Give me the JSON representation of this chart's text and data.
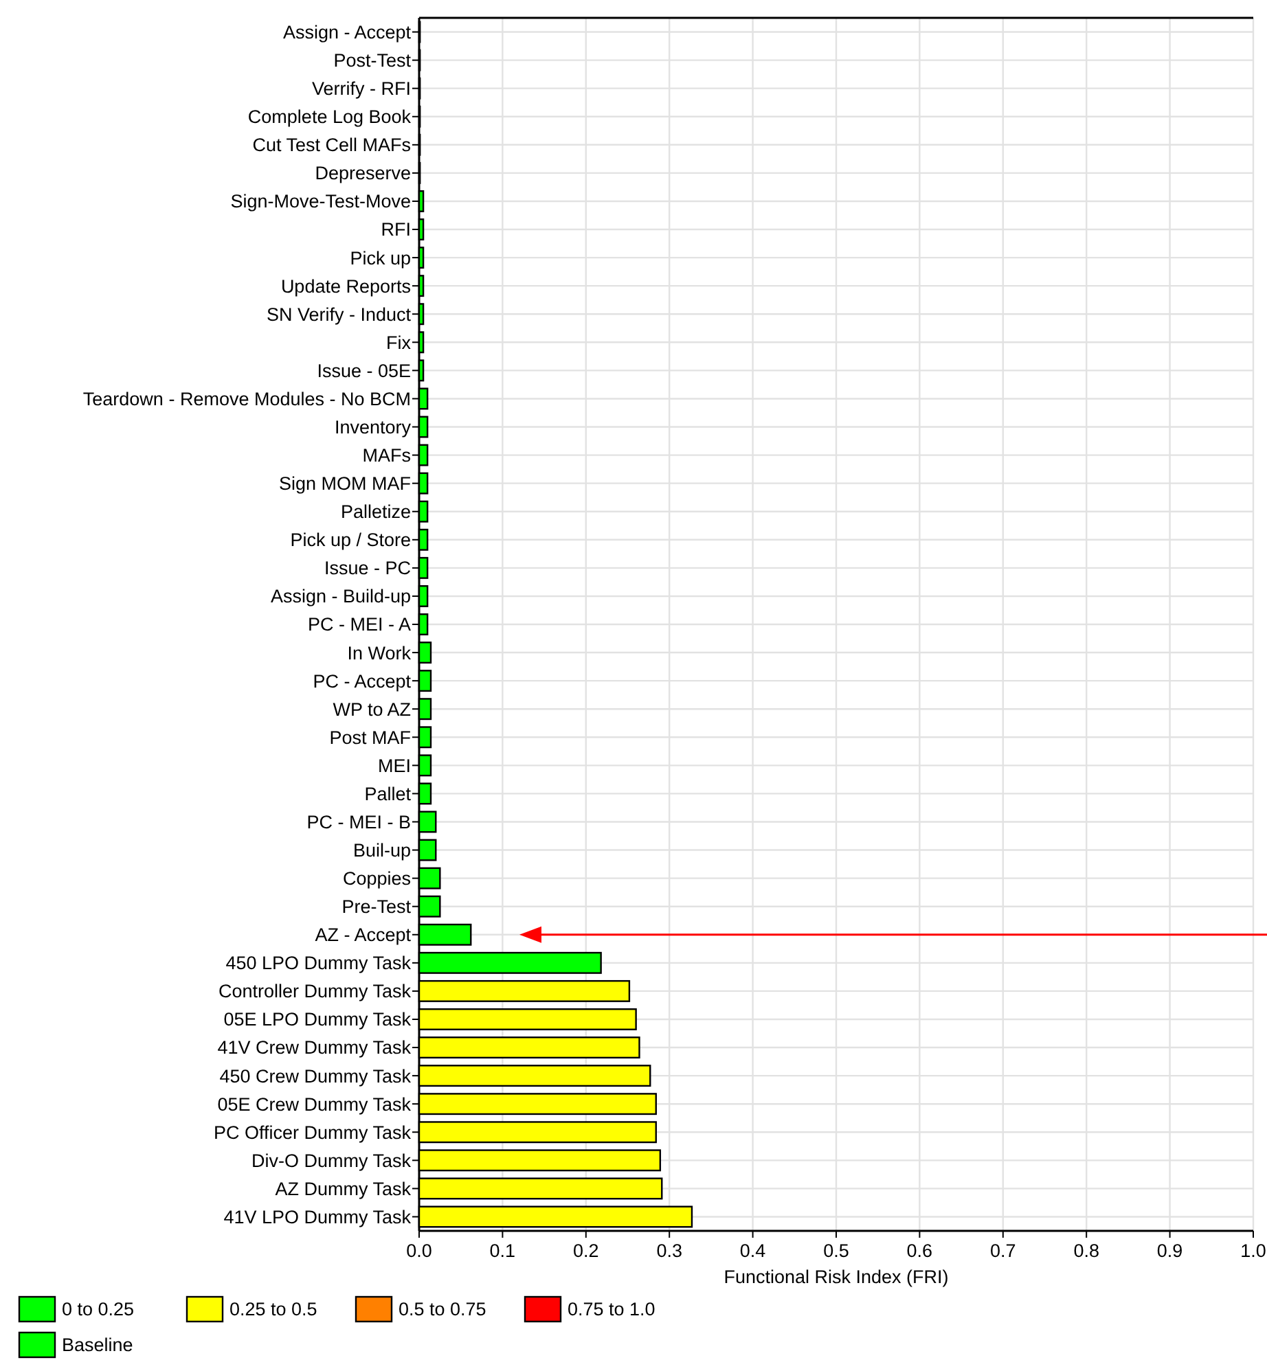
{
  "chart_data": {
    "type": "bar",
    "orientation": "horizontal",
    "stacked": true,
    "xlabel": "Functional Risk Index (FRI)",
    "categories": [
      "Assign - Accept",
      "Post-Test",
      "Verrify - RFI",
      "Complete Log Book",
      "Cut Test Cell MAFs",
      "Depreserve",
      "Sign-Move-Test-Move",
      "RFI",
      "Pick up",
      "Update Reports",
      "SN Verify - Induct",
      "Fix",
      "Issue - 05E",
      "Teardown - Remove Modules - No BCM",
      "Inventory",
      "MAFs",
      "Sign MOM MAF",
      "Palletize",
      "Pick up / Store",
      "Issue - PC",
      "Assign - Build-up",
      "PC - MEI - A",
      "In Work",
      "PC - Accept",
      "WP to AZ",
      "Post MAF",
      "MEI",
      "Pallet",
      "PC - MEI - B",
      "Buil-up",
      "Coppies",
      "Pre-Test",
      "AZ - Accept",
      "450 LPO Dummy Task",
      "Controller Dummy Task",
      "05E LPO Dummy Task",
      "41V Crew Dummy Task",
      "450 Crew Dummy Task",
      "05E Crew Dummy Task",
      "PC Officer Dummy Task",
      "Div-O Dummy Task",
      "AZ Dummy Task",
      "41V LPO Dummy Task"
    ],
    "series": [
      {
        "name": "0 to 0.25",
        "color": "#00ff00",
        "values": [
          0.001,
          0.001,
          0.001,
          0.001,
          0.001,
          0.001,
          0.005,
          0.005,
          0.005,
          0.005,
          0.005,
          0.005,
          0.005,
          0.01,
          0.01,
          0.01,
          0.01,
          0.01,
          0.01,
          0.01,
          0.01,
          0.01,
          0.014,
          0.014,
          0.014,
          0.014,
          0.014,
          0.014,
          0.02,
          0.02,
          0.025,
          0.025,
          null,
          0.218,
          null,
          null,
          null,
          null,
          null,
          null,
          null,
          null,
          null
        ]
      },
      {
        "name": "0.25 to 0.5",
        "color": "#ffff00",
        "values": [
          null,
          null,
          null,
          null,
          null,
          null,
          null,
          null,
          null,
          null,
          null,
          null,
          null,
          null,
          null,
          null,
          null,
          null,
          null,
          null,
          null,
          null,
          null,
          null,
          null,
          null,
          null,
          null,
          null,
          null,
          null,
          null,
          null,
          null,
          0.252,
          0.26,
          0.264,
          0.277,
          0.284,
          0.284,
          0.289,
          0.291,
          0.327
        ]
      },
      {
        "name": "0.5 to 0.75",
        "color": "#ff8000",
        "values": [
          null,
          null,
          null,
          null,
          null,
          null,
          null,
          null,
          null,
          null,
          null,
          null,
          null,
          null,
          null,
          null,
          null,
          null,
          null,
          null,
          null,
          null,
          null,
          null,
          null,
          null,
          null,
          null,
          null,
          null,
          null,
          null,
          null,
          null,
          null,
          null,
          null,
          null,
          null,
          null,
          null,
          null,
          null
        ]
      },
      {
        "name": "0.75 to 1.0",
        "color": "#ff0000",
        "values": [
          null,
          null,
          null,
          null,
          null,
          null,
          null,
          null,
          null,
          null,
          null,
          null,
          null,
          null,
          null,
          null,
          null,
          null,
          null,
          null,
          null,
          null,
          null,
          null,
          null,
          null,
          null,
          null,
          null,
          null,
          null,
          null,
          null,
          null,
          null,
          null,
          null,
          null,
          null,
          null,
          null,
          null,
          null
        ]
      },
      {
        "name": "Baseline",
        "color": "#00ff00",
        "values": [
          null,
          null,
          null,
          null,
          null,
          null,
          null,
          null,
          null,
          null,
          null,
          null,
          null,
          null,
          null,
          null,
          null,
          null,
          null,
          null,
          null,
          null,
          null,
          null,
          null,
          null,
          null,
          null,
          null,
          null,
          null,
          null,
          0.062,
          null,
          null,
          null,
          null,
          null,
          null,
          null,
          null,
          null,
          null
        ]
      }
    ],
    "xlim": [
      0,
      1
    ],
    "xticks": [
      {
        "value": 0,
        "label": "0.0"
      },
      0.1,
      0.2,
      0.3,
      0.4,
      0.5,
      0.6,
      0.7,
      0.8,
      0.9,
      {
        "value": 1,
        "label": "1.0"
      }
    ],
    "grid": true,
    "legend": "bottom left"
  }
}
